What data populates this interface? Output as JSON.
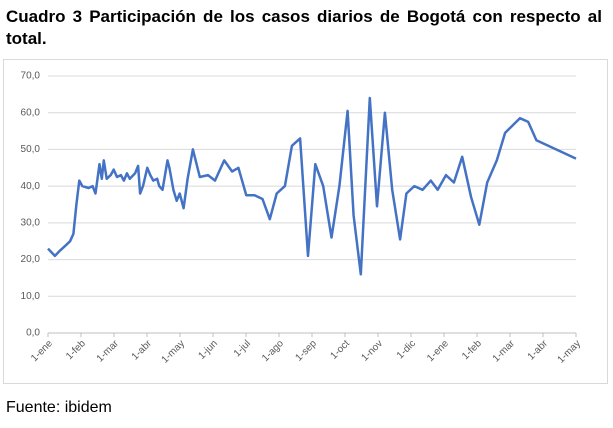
{
  "chart_data": {
    "type": "line",
    "title": "Cuadro 3 Participación de los casos diarios de Bogotá con respecto al total.",
    "source": "Fuente: ibidem",
    "color": "#4472c4",
    "grid": true,
    "xlim": [
      0,
      16
    ],
    "xticks": [
      {
        "value": 0,
        "label": "1-ene"
      },
      {
        "value": 1,
        "label": "1-feb"
      },
      {
        "value": 2,
        "label": "1-mar"
      },
      {
        "value": 3,
        "label": "1-abr"
      },
      {
        "value": 4,
        "label": "1-may"
      },
      {
        "value": 5,
        "label": "1-jun"
      },
      {
        "value": 6,
        "label": "1-jul"
      },
      {
        "value": 7,
        "label": "1-ago"
      },
      {
        "value": 8,
        "label": "1-sep"
      },
      {
        "value": 9,
        "label": "1-oct"
      },
      {
        "value": 10,
        "label": "1-nov"
      },
      {
        "value": 11,
        "label": "1-dic"
      },
      {
        "value": 12,
        "label": "1-ene"
      },
      {
        "value": 13,
        "label": "1-feb"
      },
      {
        "value": 14,
        "label": "1-mar"
      },
      {
        "value": 15,
        "label": "1-abr"
      },
      {
        "value": 16,
        "label": "1-may"
      }
    ],
    "ylim": [
      0,
      70
    ],
    "yticks": [
      {
        "value": 0,
        "label": "0,0"
      },
      {
        "value": 10,
        "label": "10,0"
      },
      {
        "value": 20,
        "label": "20,0"
      },
      {
        "value": 30,
        "label": "30,0"
      },
      {
        "value": 40,
        "label": "40,0"
      },
      {
        "value": 50,
        "label": "50,0"
      },
      {
        "value": 60,
        "label": "60,0"
      },
      {
        "value": 70,
        "label": "70,0"
      }
    ],
    "x": [
      0,
      0.21,
      0.37,
      0.55,
      0.67,
      0.77,
      0.86,
      0.95,
      1.04,
      1.23,
      1.35,
      1.44,
      1.56,
      1.63,
      1.69,
      1.78,
      1.9,
      1.99,
      2.09,
      2.21,
      2.3,
      2.39,
      2.48,
      2.64,
      2.73,
      2.79,
      2.88,
      3.01,
      3.1,
      3.19,
      3.31,
      3.37,
      3.47,
      3.62,
      3.68,
      3.8,
      3.9,
      3.99,
      4.11,
      4.23,
      4.39,
      4.6,
      4.85,
      5.06,
      5.34,
      5.58,
      5.77,
      6.01,
      6.26,
      6.5,
      6.72,
      6.93,
      7.18,
      7.39,
      7.64,
      7.88,
      8.1,
      8.34,
      8.59,
      8.83,
      9.08,
      9.26,
      9.48,
      9.75,
      9.97,
      10.21,
      10.43,
      10.67,
      10.86,
      11.1,
      11.35,
      11.6,
      11.81,
      12.06,
      12.3,
      12.55,
      12.82,
      13.07,
      13.31,
      13.6,
      13.85,
      14.3,
      14.55,
      14.8,
      16
    ],
    "values": [
      23,
      21,
      22.5,
      24,
      25,
      27,
      35,
      41.5,
      40,
      39.5,
      40,
      38,
      46,
      42,
      47,
      42,
      43,
      44.5,
      42.5,
      43,
      41.5,
      43.5,
      42,
      43.5,
      45.5,
      38,
      40,
      45,
      43,
      41.5,
      42,
      40,
      39,
      47,
      45,
      39,
      36,
      38,
      34,
      42,
      50,
      42.5,
      43,
      41.5,
      47,
      44,
      45,
      37.5,
      37.5,
      36.5,
      31,
      38,
      40,
      51,
      53,
      21,
      46,
      40,
      26,
      40,
      60.5,
      32,
      16,
      64,
      34.5,
      60,
      39,
      25.5,
      38,
      40,
      39,
      41.5,
      39,
      43,
      41,
      48,
      37,
      29.5,
      41,
      47,
      54.5,
      58.5,
      57.5,
      52.5,
      47.5
    ]
  }
}
